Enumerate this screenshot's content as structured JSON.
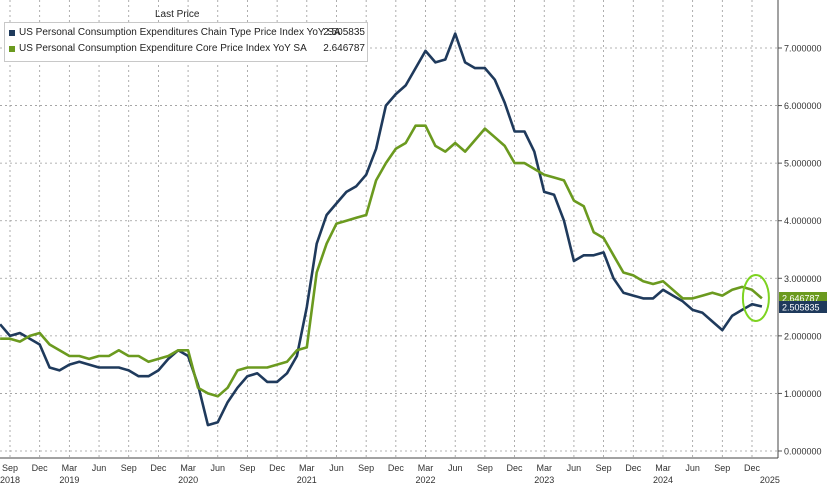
{
  "chart_data": {
    "type": "line",
    "legend_title": "Last Price",
    "legend_position": "top-left",
    "grid": true,
    "ylim": [
      0,
      7.5
    ],
    "y_ticks": [
      "0.000000",
      "1.000000",
      "2.000000",
      "3.000000",
      "4.000000",
      "5.000000",
      "6.000000",
      "7.000000"
    ],
    "x_ticks": [
      {
        "label": "Sep",
        "year": "2018",
        "date": "2018-09"
      },
      {
        "label": "Dec",
        "year": "",
        "date": "2018-12"
      },
      {
        "label": "Mar",
        "year": "2019",
        "date": "2019-03"
      },
      {
        "label": "Jun",
        "year": "",
        "date": "2019-06"
      },
      {
        "label": "Sep",
        "year": "",
        "date": "2019-09"
      },
      {
        "label": "Dec",
        "year": "",
        "date": "2019-12"
      },
      {
        "label": "Mar",
        "year": "2020",
        "date": "2020-03"
      },
      {
        "label": "Jun",
        "year": "",
        "date": "2020-06"
      },
      {
        "label": "Sep",
        "year": "",
        "date": "2020-09"
      },
      {
        "label": "Dec",
        "year": "",
        "date": "2020-12"
      },
      {
        "label": "Mar",
        "year": "2021",
        "date": "2021-03"
      },
      {
        "label": "Jun",
        "year": "",
        "date": "2021-06"
      },
      {
        "label": "Sep",
        "year": "",
        "date": "2021-09"
      },
      {
        "label": "Dec",
        "year": "",
        "date": "2021-12"
      },
      {
        "label": "Mar",
        "year": "2022",
        "date": "2022-03"
      },
      {
        "label": "Jun",
        "year": "",
        "date": "2022-06"
      },
      {
        "label": "Sep",
        "year": "",
        "date": "2022-09"
      },
      {
        "label": "Dec",
        "year": "",
        "date": "2022-12"
      },
      {
        "label": "Mar",
        "year": "2023",
        "date": "2023-03"
      },
      {
        "label": "Jun",
        "year": "",
        "date": "2023-06"
      },
      {
        "label": "Sep",
        "year": "",
        "date": "2023-09"
      },
      {
        "label": "Dec",
        "year": "",
        "date": "2023-12"
      },
      {
        "label": "Mar",
        "year": "2024",
        "date": "2024-03"
      },
      {
        "label": "Jun",
        "year": "",
        "date": "2024-06"
      },
      {
        "label": "Sep",
        "year": "",
        "date": "2024-09"
      },
      {
        "label": "Dec",
        "year": "",
        "date": "2024-12"
      },
      {
        "label": "",
        "year": "2025",
        "date": "2025-01"
      }
    ],
    "x_start": "2018-08",
    "series": [
      {
        "name": "US Personal Consumption Expenditures Chain Type Price Index YoY SA",
        "last_value_label": "2.505835",
        "color": "#1f3a5c",
        "values": [
          2.2,
          2.0,
          2.05,
          1.95,
          1.85,
          1.45,
          1.4,
          1.5,
          1.55,
          1.5,
          1.45,
          1.45,
          1.45,
          1.4,
          1.3,
          1.3,
          1.4,
          1.6,
          1.75,
          1.65,
          1.15,
          0.45,
          0.5,
          0.85,
          1.1,
          1.3,
          1.35,
          1.2,
          1.2,
          1.35,
          1.65,
          2.5,
          3.6,
          4.1,
          4.3,
          4.5,
          4.6,
          4.8,
          5.25,
          6.0,
          6.2,
          6.35,
          6.65,
          6.95,
          6.75,
          6.8,
          7.25,
          6.75,
          6.65,
          6.65,
          6.45,
          6.05,
          5.55,
          5.55,
          5.2,
          4.5,
          4.45,
          4.0,
          3.3,
          3.4,
          3.4,
          3.45,
          3.0,
          2.75,
          2.7,
          2.65,
          2.65,
          2.8,
          2.7,
          2.6,
          2.45,
          2.4,
          2.25,
          2.1,
          2.35,
          2.45,
          2.55,
          2.51
        ]
      },
      {
        "name": "US Personal Consumption Expenditure Core Price Index YoY SA",
        "last_value_label": "2.646787",
        "color": "#6b9a1f",
        "values": [
          1.95,
          1.95,
          1.9,
          2.0,
          2.05,
          1.85,
          1.75,
          1.65,
          1.65,
          1.6,
          1.65,
          1.65,
          1.75,
          1.65,
          1.65,
          1.55,
          1.6,
          1.65,
          1.75,
          1.75,
          1.1,
          1.0,
          0.95,
          1.1,
          1.4,
          1.45,
          1.45,
          1.45,
          1.5,
          1.55,
          1.75,
          1.8,
          3.1,
          3.6,
          3.95,
          4.0,
          4.05,
          4.1,
          4.7,
          5.0,
          5.25,
          5.35,
          5.65,
          5.65,
          5.3,
          5.2,
          5.35,
          5.2,
          5.4,
          5.6,
          5.45,
          5.3,
          5.0,
          5.0,
          4.9,
          4.8,
          4.75,
          4.7,
          4.35,
          4.25,
          3.8,
          3.7,
          3.4,
          3.1,
          3.05,
          2.95,
          2.9,
          2.95,
          2.8,
          2.65,
          2.65,
          2.7,
          2.75,
          2.7,
          2.8,
          2.85,
          2.8,
          2.65
        ]
      }
    ]
  }
}
